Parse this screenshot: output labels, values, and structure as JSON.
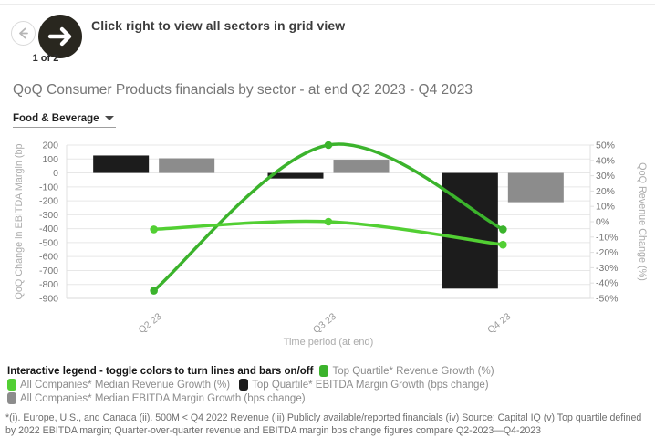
{
  "header": {
    "pagination": "1 of 2",
    "message": "Click right to view all sectors in grid view",
    "prev_label": "previous",
    "next_label": "next"
  },
  "title": "QoQ Consumer Products financials by sector - at end Q2 2023 - Q4 2023",
  "sector_dropdown": {
    "value": "Food & Beverage"
  },
  "chart_data": {
    "type": "combo-bar-line",
    "categories": [
      "Q2 23",
      "Q3 23",
      "Q4 23"
    ],
    "xlabel": "Time period (at end)",
    "grid": true,
    "left_axis": {
      "label": "QoQ Change in EBITDA Margin (bp",
      "min": -900,
      "max": 200,
      "tick_step": 100
    },
    "right_axis": {
      "label": "QoQ Revenue Change (%)",
      "min": -50,
      "max": 50,
      "tick_step": 10,
      "unit": "%"
    },
    "bar_series": [
      {
        "name": "Top Quartile* EBITDA Margin Growth (bps change)",
        "axis": "left",
        "color": "#1c1c1c",
        "values": [
          125,
          -40,
          -830
        ]
      },
      {
        "name": "All Companies* Median EBITDA Margin Growth (bps change)",
        "axis": "left",
        "color": "#8c8c8c",
        "values": [
          105,
          95,
          -210
        ]
      }
    ],
    "line_series": [
      {
        "name": "Top Quartile* Revenue Growth (%)",
        "axis": "right",
        "color": "#3bb32c",
        "values": [
          -45,
          50,
          -5
        ]
      },
      {
        "name": "All Companies* Median Revenue Growth (%)",
        "axis": "right",
        "color": "#52cf33",
        "values": [
          -5,
          0,
          -15
        ]
      }
    ]
  },
  "legend": {
    "intro": "Interactive legend - toggle colors to turn lines and bars on/off",
    "items": [
      {
        "label": "Top Quartile* Revenue Growth (%)",
        "color": "#3bb32c"
      },
      {
        "label": "All Companies* Median Revenue Growth (%)",
        "color": "#52cf33"
      },
      {
        "label": "Top Quartile* EBITDA Margin Growth (bps change)",
        "color": "#1c1c1c"
      },
      {
        "label": "All Companies* Median EBITDA Margin Growth (bps change)",
        "color": "#8c8c8c"
      }
    ]
  },
  "footnote": "*(i). Europe, U.S., and Canada (ii). 500M < Q4 2022 Revenue (iii) Publicly available/reported financials (iv) Source: Capital IQ (v) Top quartile defined by 2022 EBITDA margin; Quarter-over-quarter revenue and EBITDA margin bps change figures compare Q2-2023—Q4-2023"
}
